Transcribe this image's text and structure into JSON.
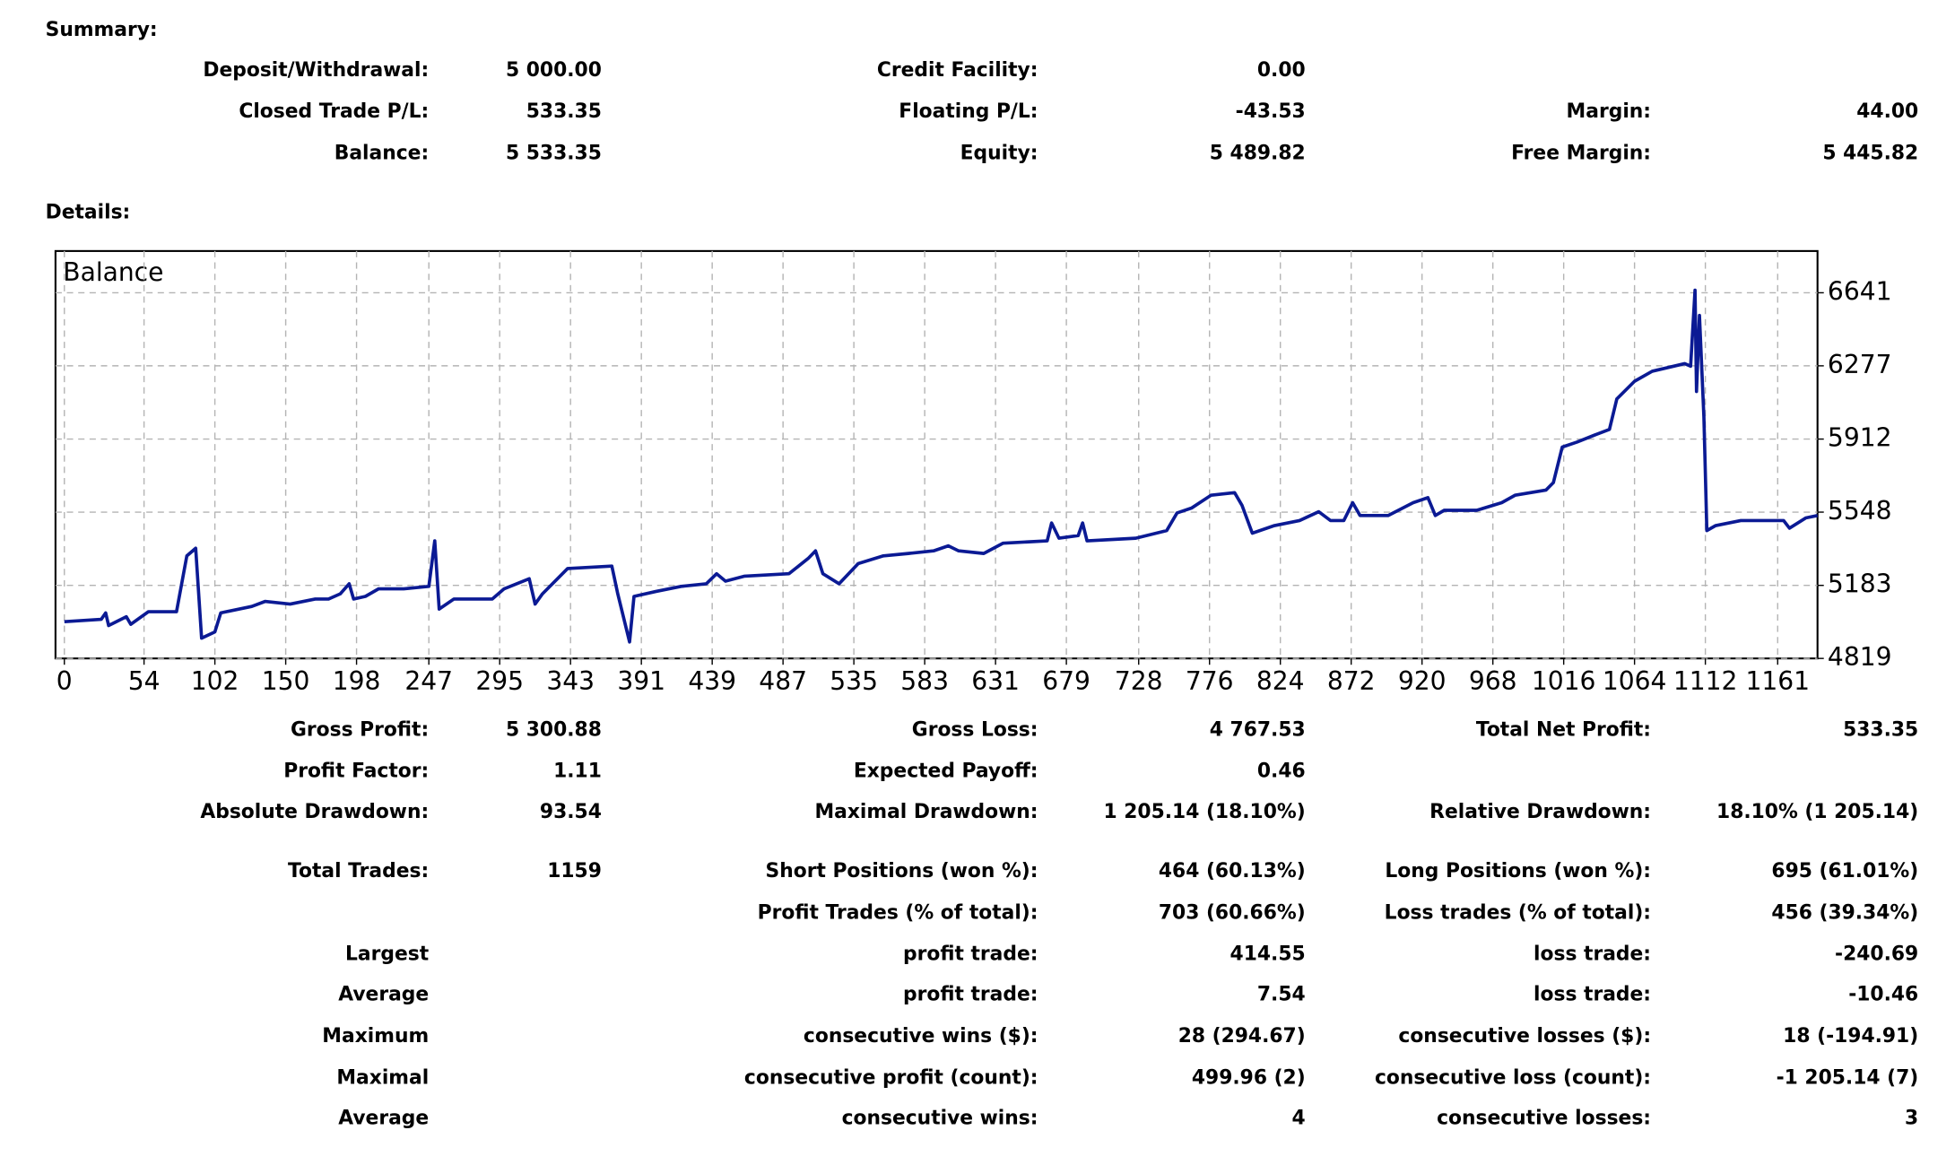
{
  "summary": {
    "title": "Summary:",
    "rows": [
      [
        "Deposit/Withdrawal:",
        "5 000.00",
        "Credit Facility:",
        "0.00",
        null,
        null
      ],
      [
        "Closed Trade P/L:",
        "533.35",
        "Floating P/L:",
        "-43.53",
        "Margin:",
        "44.00"
      ],
      [
        "Balance:",
        "5 533.35",
        "Equity:",
        "5 489.82",
        "Free Margin:",
        "5 445.82"
      ]
    ]
  },
  "details": {
    "title": "Details:",
    "rows": [
      [
        "Gross Profit:",
        "5 300.88",
        "Gross Loss:",
        "4 767.53",
        "Total Net Profit:",
        "533.35"
      ],
      [
        "Profit Factor:",
        "1.11",
        "Expected Payoff:",
        "0.46",
        null,
        null
      ],
      [
        "Absolute Drawdown:",
        "93.54",
        "Maximal Drawdown:",
        "1 205.14 (18.10%)",
        "Relative Drawdown:",
        "18.10% (1 205.14)"
      ],
      [
        "Total Trades:",
        "1159",
        "Short Positions (won %):",
        "464 (60.13%)",
        "Long Positions (won %):",
        "695 (61.01%)"
      ],
      [
        null,
        null,
        "Profit Trades (% of total):",
        "703 (60.66%)",
        "Loss trades (% of total):",
        "456 (39.34%)"
      ],
      [
        "Largest",
        null,
        "profit trade:",
        "414.55",
        "loss trade:",
        "-240.69"
      ],
      [
        "Average",
        null,
        "profit trade:",
        "7.54",
        "loss trade:",
        "-10.46"
      ],
      [
        "Maximum",
        null,
        "consecutive wins ($):",
        "28 (294.67)",
        "consecutive losses ($):",
        "18 (-194.91)"
      ],
      [
        "Maximal",
        null,
        "consecutive profit (count):",
        "499.96 (2)",
        "consecutive loss (count):",
        "-1 205.14 (7)"
      ],
      [
        "Average",
        null,
        "consecutive wins:",
        "4",
        "consecutive losses:",
        "3"
      ]
    ]
  },
  "chart_data": {
    "type": "line",
    "grid": true,
    "xlim": [
      -6,
      1188
    ],
    "ylim": [
      4819,
      6849
    ],
    "xticks": [
      0,
      54,
      102,
      150,
      198,
      247,
      295,
      343,
      391,
      439,
      487,
      535,
      583,
      631,
      679,
      728,
      776,
      824,
      872,
      920,
      968,
      1016,
      1064,
      1112,
      1161
    ],
    "yticks": [
      4819,
      5183,
      5548,
      5912,
      6277,
      6641
    ],
    "x": [
      0,
      25,
      28,
      30,
      42,
      45,
      57,
      76,
      83,
      89,
      93,
      102,
      106,
      127,
      136,
      153,
      170,
      179,
      187,
      193,
      196,
      204,
      213,
      230,
      247,
      251,
      254,
      264,
      290,
      298,
      315,
      319,
      324,
      341,
      371,
      375,
      383,
      386,
      401,
      418,
      435,
      442,
      448,
      461,
      491,
      504,
      509,
      514,
      525,
      538,
      555,
      572,
      589,
      599,
      606,
      623,
      636,
      666,
      669,
      674,
      687,
      690,
      693,
      726,
      747,
      754,
      764,
      777,
      793,
      798,
      805,
      820,
      837,
      850,
      858,
      867,
      873,
      878,
      897,
      914,
      924,
      929,
      935,
      957,
      974,
      983,
      1004,
      1009,
      1015,
      1025,
      1038,
      1047,
      1052,
      1064,
      1076,
      1098,
      1102,
      1105,
      1106,
      1108,
      1111,
      1113,
      1119,
      1136,
      1153,
      1165,
      1169,
      1180,
      1188
    ],
    "series": [
      {
        "name": "Balance",
        "color": "#0b1a94",
        "values": [
          5002,
          5014,
          5046,
          4983,
          5027,
          4989,
          5052,
          5052,
          5330,
          5368,
          4920,
          4951,
          5046,
          5078,
          5103,
          5090,
          5115,
          5115,
          5141,
          5191,
          5115,
          5128,
          5166,
          5166,
          5178,
          5405,
          5065,
          5115,
          5115,
          5166,
          5216,
          5090,
          5141,
          5267,
          5279,
          5141,
          4901,
          5128,
          5153,
          5178,
          5191,
          5241,
          5204,
          5229,
          5241,
          5317,
          5355,
          5241,
          5191,
          5292,
          5330,
          5342,
          5355,
          5380,
          5355,
          5342,
          5393,
          5405,
          5494,
          5418,
          5431,
          5494,
          5405,
          5418,
          5456,
          5544,
          5569,
          5632,
          5645,
          5582,
          5443,
          5481,
          5506,
          5550,
          5506,
          5506,
          5595,
          5531,
          5531,
          5595,
          5620,
          5531,
          5557,
          5557,
          5595,
          5632,
          5658,
          5695,
          5872,
          5897,
          5935,
          5960,
          6112,
          6200,
          6250,
          6288,
          6275,
          6654,
          6149,
          6528,
          6023,
          5456,
          5481,
          5506,
          5506,
          5506,
          5468,
          5519,
          5531
        ]
      }
    ]
  }
}
